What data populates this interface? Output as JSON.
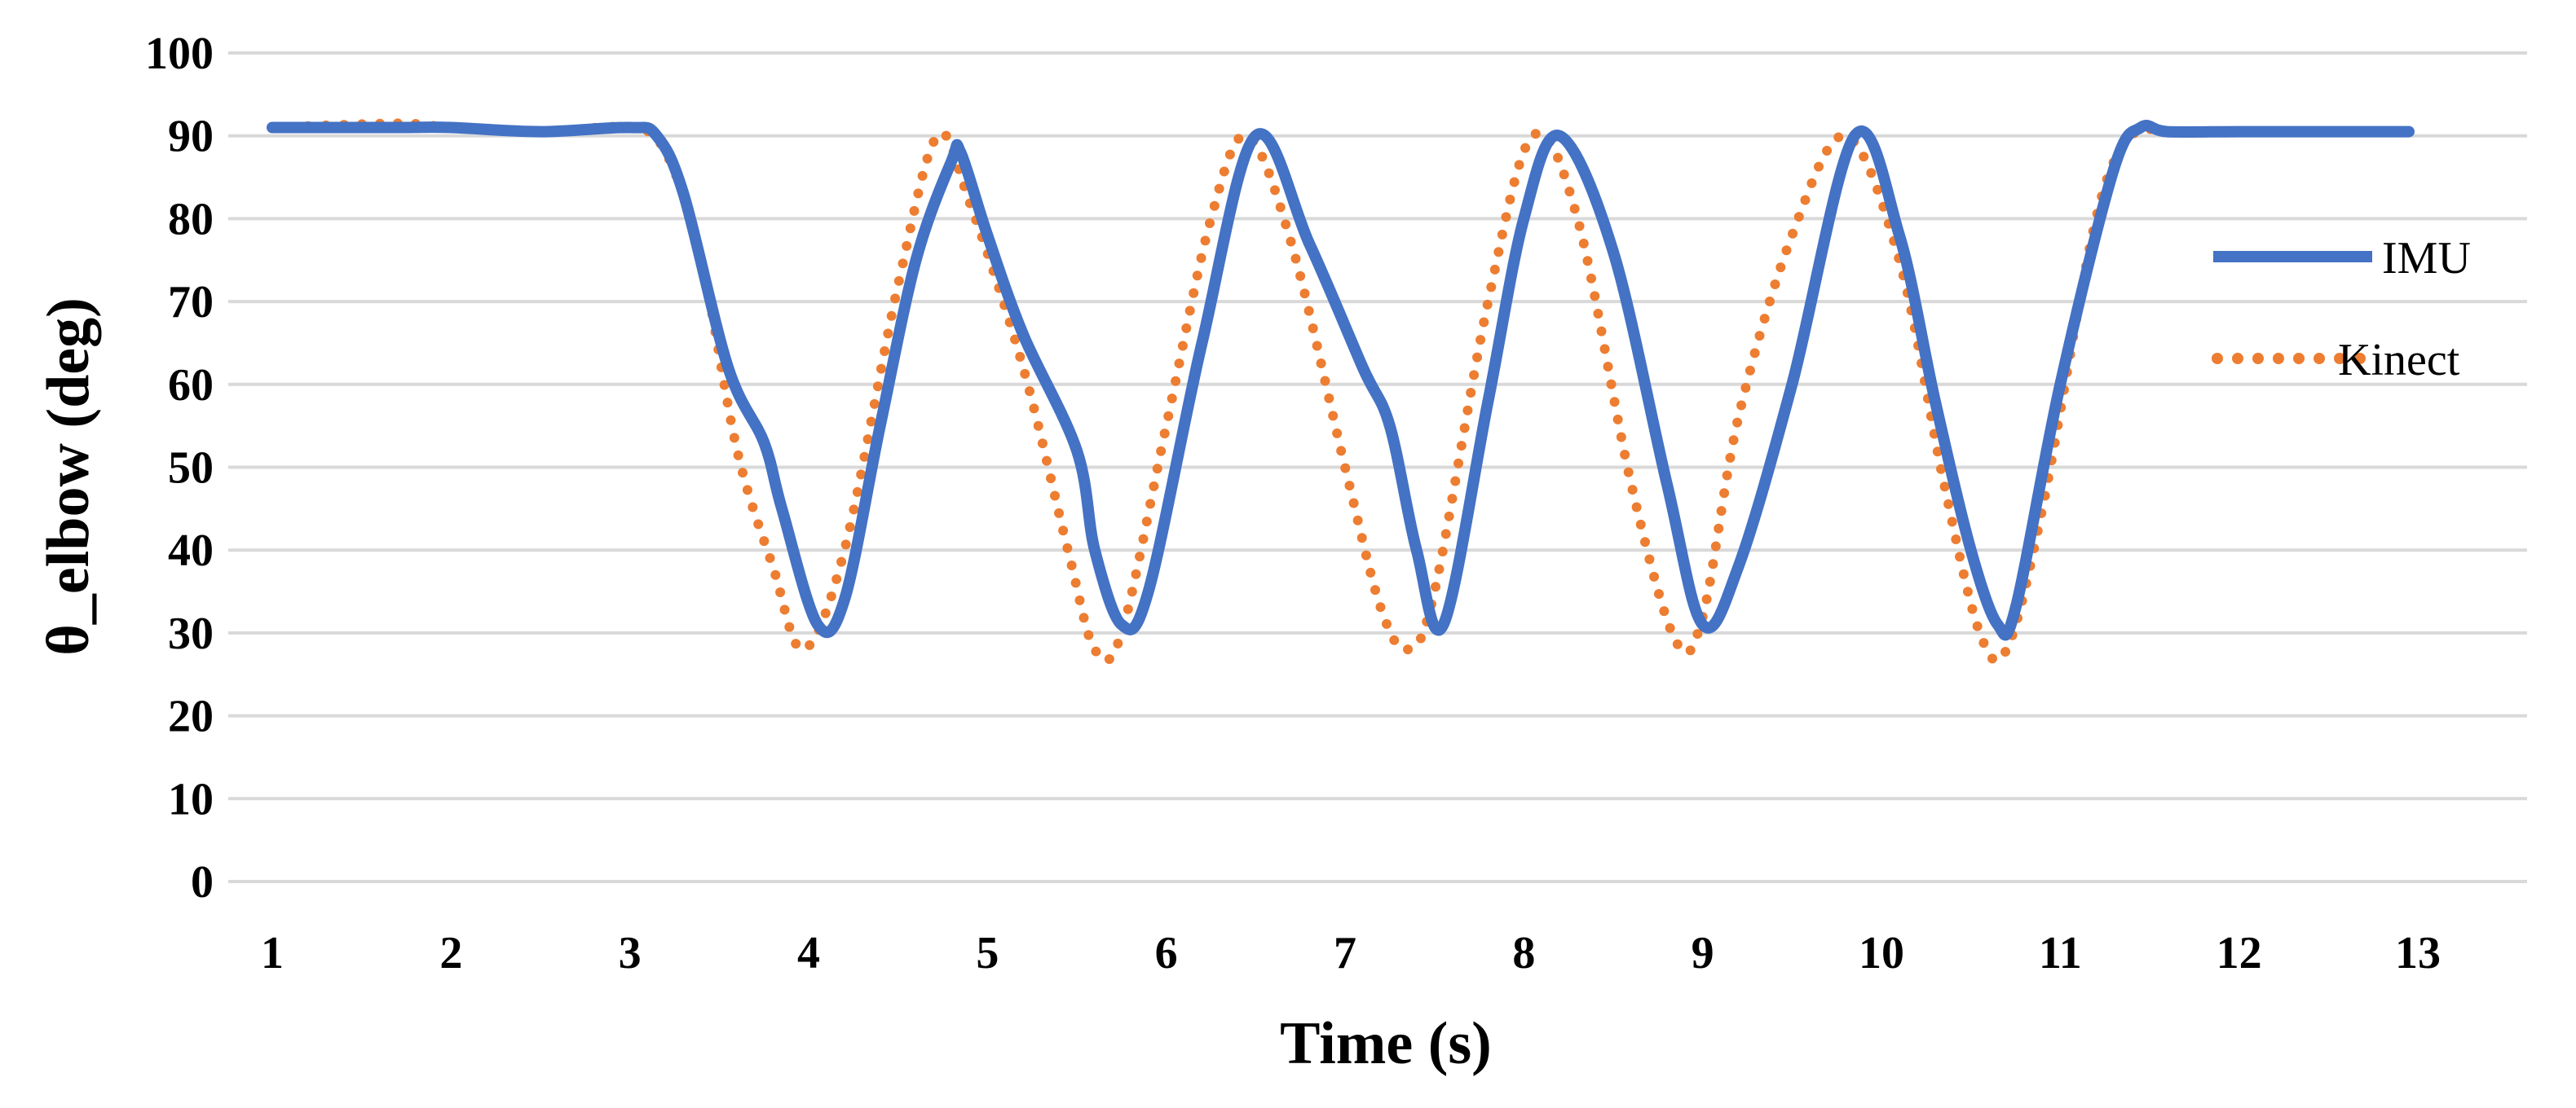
{
  "chart_data": {
    "type": "line",
    "title": "",
    "xlabel": "Time (s)",
    "ylabel": "θ_elbow (deg)",
    "xlim": [
      1,
      13
    ],
    "ylim": [
      0,
      100
    ],
    "x_ticks": [
      1,
      2,
      3,
      4,
      5,
      6,
      7,
      8,
      9,
      10,
      11,
      12,
      13
    ],
    "y_ticks": [
      0,
      10,
      20,
      30,
      40,
      50,
      60,
      70,
      80,
      90,
      100
    ],
    "grid": "horizontal",
    "legend_position": "right",
    "series": [
      {
        "name": "IMU",
        "style": "solid",
        "color": "#4472C4",
        "x": [
          1.0,
          1.7,
          2.0,
          2.5,
          3.0,
          3.15,
          3.3,
          3.55,
          3.75,
          3.85,
          4.05,
          4.2,
          4.4,
          4.6,
          4.8,
          4.85,
          5.0,
          5.2,
          5.5,
          5.6,
          5.75,
          5.9,
          6.2,
          6.5,
          6.8,
          7.1,
          7.25,
          7.4,
          7.55,
          7.8,
          8.0,
          8.2,
          8.5,
          8.8,
          9.0,
          9.2,
          9.5,
          9.85,
          10.1,
          10.3,
          10.5,
          10.65,
          10.75,
          11.0,
          11.3,
          11.45,
          11.6,
          12.0,
          12.5,
          12.95
        ],
        "y": [
          91,
          91,
          91,
          90.5,
          91,
          90,
          83,
          62,
          53,
          45,
          31,
          34,
          55,
          75,
          87,
          88,
          78,
          66,
          52,
          40,
          31,
          35,
          65,
          90,
          77,
          62,
          55,
          40,
          31,
          58,
          80,
          90,
          76,
          48,
          31,
          38,
          60,
          90,
          78,
          58,
          40,
          31,
          33,
          60,
          86,
          91,
          90.5,
          90.5,
          90.5,
          90.5
        ]
      },
      {
        "name": "Kinect",
        "style": "dotted",
        "color": "#ED7D31",
        "x": [
          1.0,
          1.7,
          2.0,
          2.5,
          3.0,
          3.2,
          3.4,
          3.6,
          3.8,
          3.97,
          4.2,
          4.5,
          4.72,
          4.9,
          5.2,
          5.45,
          5.6,
          5.75,
          6.0,
          6.25,
          6.45,
          6.7,
          7.0,
          7.2,
          7.35,
          7.5,
          7.8,
          8.05,
          8.3,
          8.6,
          8.85,
          9.0,
          9.2,
          9.5,
          9.8,
          10.1,
          10.35,
          10.55,
          10.7,
          10.9,
          11.2,
          11.4,
          11.6,
          12.0,
          12.5,
          12.95
        ],
        "y": [
          91,
          91.5,
          91,
          90.5,
          91,
          88,
          75,
          52,
          38,
          28,
          40,
          72,
          90,
          82,
          62,
          40,
          28,
          30,
          55,
          80,
          90,
          77,
          50,
          33,
          28,
          35,
          70,
          90,
          80,
          48,
          29,
          32,
          56,
          78,
          90,
          75,
          48,
          30,
          28,
          45,
          80,
          90,
          90.5,
          90.5,
          90.5,
          90.5
        ]
      }
    ]
  }
}
